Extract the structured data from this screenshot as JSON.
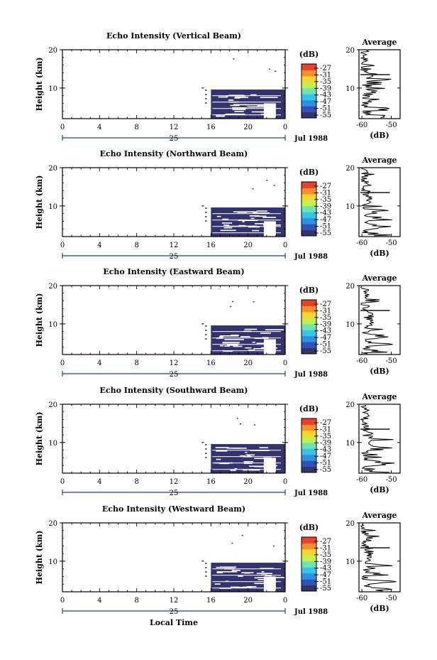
{
  "figure": {
    "date_label": "Jul 1988",
    "day_label": "25",
    "xlabel": "Local Time"
  },
  "colors": {
    "echo": "#33336e",
    "colorbar": [
      "#33346c",
      "#2f54b6",
      "#2f8fe0",
      "#38c4e8",
      "#6fe3b0",
      "#c6ef4e",
      "#f6d62f",
      "#f7902a",
      "#e8402c"
    ]
  },
  "colorbar_unit": "(dB)",
  "colorbar_ticks": [
    "-27",
    "-31",
    "-35",
    "-39",
    "-43",
    "-47",
    "-51",
    "-55"
  ],
  "chart_data": [
    {
      "type": "heatmap",
      "title": "Echo Intensity (Vertical Beam)",
      "xlabel": "Local Time",
      "ylabel": "Height (km)",
      "xlim": [
        0,
        24
      ],
      "ylim": [
        2,
        20
      ],
      "x_ticks": [
        "0",
        "4",
        "8",
        "12",
        "16",
        "20",
        "0"
      ],
      "y_ticks": [
        "10",
        "20"
      ],
      "values_note_db": [
        -55,
        -27
      ],
      "echo_region": {
        "x_start": 16,
        "x_end": 24,
        "y_top": 9.6,
        "gap": {
          "x": [
            21.7,
            23.0
          ],
          "y_top": 6.0
        }
      },
      "average": {
        "title": "Average",
        "xlabel": "(dB)",
        "x_ticks": [
          "-60",
          "-50"
        ],
        "xlim": [
          -61,
          -47
        ],
        "y_ticks": [
          "10",
          "20"
        ]
      }
    },
    {
      "type": "heatmap",
      "title": "Echo Intensity (Northward Beam)",
      "xlabel": "Local Time",
      "ylabel": "Height (km)",
      "xlim": [
        0,
        24
      ],
      "ylim": [
        2,
        20
      ],
      "x_ticks": [
        "0",
        "4",
        "8",
        "12",
        "16",
        "20",
        "0"
      ],
      "y_ticks": [
        "10",
        "20"
      ],
      "echo_region": {
        "x_start": 16,
        "x_end": 24,
        "y_top": 9.6,
        "gap": {
          "x": [
            21.7,
            23.0
          ],
          "y_top": 6.0
        }
      },
      "average": {
        "title": "Average",
        "xlabel": "(dB)",
        "x_ticks": [
          "-60",
          "-50"
        ],
        "xlim": [
          -61,
          -47
        ],
        "y_ticks": [
          "10",
          "20"
        ]
      }
    },
    {
      "type": "heatmap",
      "title": "Echo Intensity (Eastward Beam)",
      "xlabel": "Local Time",
      "ylabel": "Height (km)",
      "xlim": [
        0,
        24
      ],
      "ylim": [
        2,
        20
      ],
      "x_ticks": [
        "0",
        "4",
        "8",
        "12",
        "16",
        "20",
        "0"
      ],
      "y_ticks": [
        "10",
        "20"
      ],
      "echo_region": {
        "x_start": 16,
        "x_end": 24,
        "y_top": 9.6,
        "gap": {
          "x": [
            21.7,
            23.0
          ],
          "y_top": 6.0
        }
      },
      "average": {
        "title": "Average",
        "xlabel": "(dB)",
        "x_ticks": [
          "-60",
          "-50"
        ],
        "xlim": [
          -61,
          -47
        ],
        "y_ticks": [
          "10",
          "20"
        ]
      }
    },
    {
      "type": "heatmap",
      "title": "Echo Intensity (Southward Beam)",
      "xlabel": "Local Time",
      "ylabel": "Height (km)",
      "xlim": [
        0,
        24
      ],
      "ylim": [
        2,
        20
      ],
      "x_ticks": [
        "0",
        "4",
        "8",
        "12",
        "16",
        "20",
        "0"
      ],
      "y_ticks": [
        "10",
        "20"
      ],
      "echo_region": {
        "x_start": 16,
        "x_end": 24,
        "y_top": 9.6,
        "gap": {
          "x": [
            21.7,
            23.0
          ],
          "y_top": 6.0
        }
      },
      "average": {
        "title": "Average",
        "xlabel": "(dB)",
        "x_ticks": [
          "-60",
          "-50"
        ],
        "xlim": [
          -61,
          -47
        ],
        "y_ticks": [
          "10",
          "20"
        ]
      }
    },
    {
      "type": "heatmap",
      "title": "Echo Intensity (Westward Beam)",
      "xlabel": "Local Time",
      "ylabel": "Height (km)",
      "xlim": [
        0,
        24
      ],
      "ylim": [
        2,
        20
      ],
      "x_ticks": [
        "0",
        "4",
        "8",
        "12",
        "16",
        "20",
        "0"
      ],
      "y_ticks": [
        "10",
        "20"
      ],
      "echo_region": {
        "x_start": 16,
        "x_end": 24,
        "y_top": 9.6,
        "gap": {
          "x": [
            21.7,
            23.0
          ],
          "y_top": 6.0
        }
      },
      "average": {
        "title": "Average",
        "xlabel": "(dB)",
        "x_ticks": [
          "-60",
          "-50"
        ],
        "xlim": [
          -61,
          -47
        ],
        "y_ticks": [
          "10",
          "20"
        ]
      }
    }
  ]
}
